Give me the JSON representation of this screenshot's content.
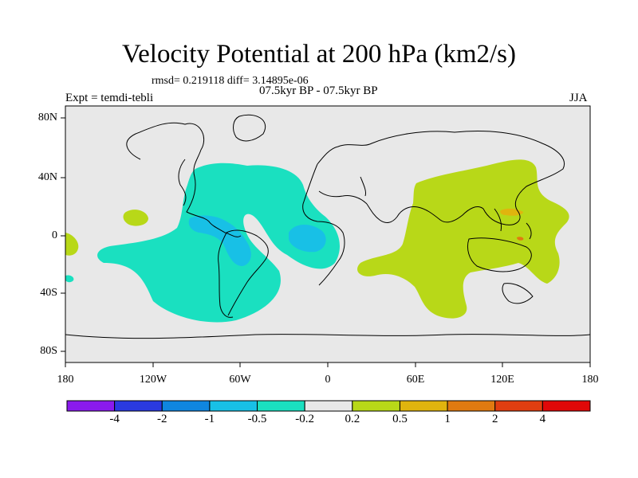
{
  "title": "Velocity Potential at 200 hPa (km2/s)",
  "stats_line": "rmsd= 0.219118 diff= 3.14895e-06",
  "subtitle": "07.5kyr BP - 07.5kyr BP",
  "left_label": "Expt = temdi-tebli",
  "right_label": "JJA",
  "lat_labels": [
    "80N",
    "40N",
    "0",
    "40S",
    "80S"
  ],
  "lon_labels": [
    "180",
    "120W",
    "60W",
    "0",
    "60E",
    "120E",
    "180"
  ],
  "colorbar": {
    "colors": [
      "#8a1aed",
      "#2a3ae0",
      "#0f86e0",
      "#18c0e6",
      "#1ae0c0",
      "#e8e8e8",
      "#b8d818",
      "#e0b40e",
      "#e07a10",
      "#e03e10",
      "#e00808"
    ],
    "labels": [
      "-4",
      "-2",
      "-1",
      "-0.5",
      "-0.2",
      "0.2",
      "0.5",
      "1",
      "2",
      "4"
    ]
  },
  "map_colors": {
    "background": "#e8e8e8",
    "neg_weak": "#1ae0c0",
    "neg_mid": "#18c0e6",
    "pos_weak": "#b8d818",
    "pos_mid": "#e0b40e",
    "pos_strong": "#e07a10"
  }
}
